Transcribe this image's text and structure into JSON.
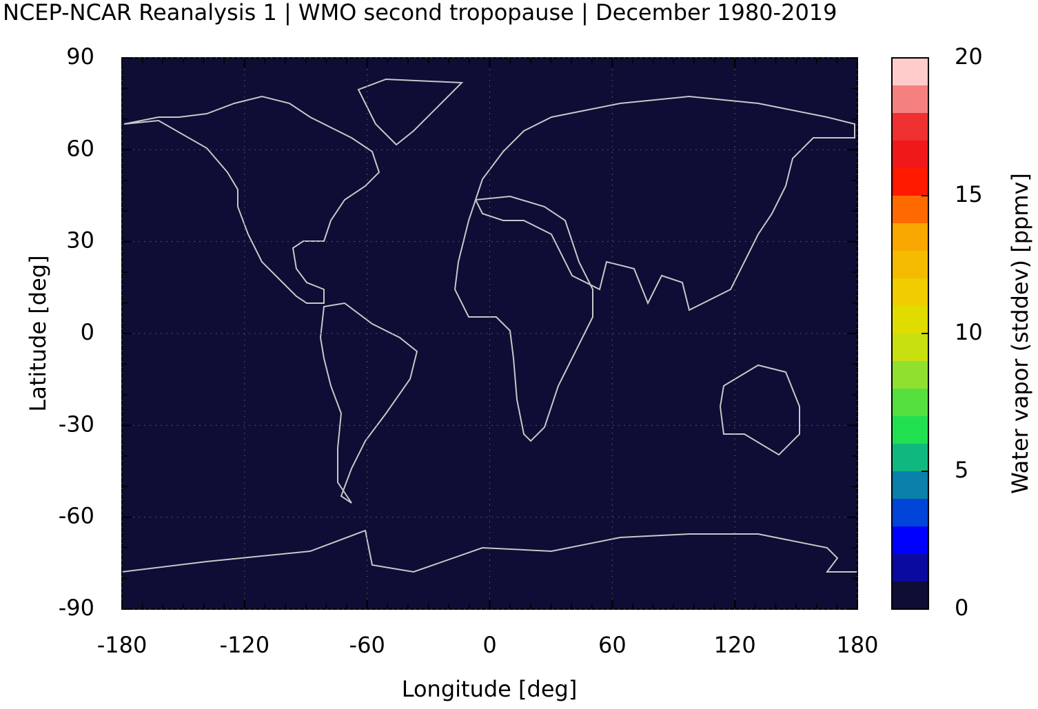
{
  "chart_data": {
    "type": "map",
    "title": "NCEP-NCAR Reanalysis 1 | WMO second tropopause | December 1980-2019",
    "xlabel": "Longitude [deg]",
    "ylabel": "Latitude [deg]",
    "xlim": [
      -180,
      180
    ],
    "xticks": [
      -180,
      -120,
      -60,
      0,
      60,
      120,
      180
    ],
    "ylim": [
      -90,
      90
    ],
    "yticks": [
      -90,
      -60,
      -30,
      0,
      30,
      60,
      90
    ],
    "grid": true,
    "field_color": "#0d0d35",
    "coastline_color": "#c8c8c8",
    "colorbar": {
      "label": "Water vapor (stddev) [ppmv]",
      "lim": [
        0,
        20
      ],
      "ticks": [
        0,
        5,
        10,
        15,
        20
      ],
      "levels": [
        0,
        1,
        2,
        3,
        4,
        5,
        6,
        7,
        8,
        9,
        10,
        11,
        12,
        13,
        14,
        15,
        16,
        17,
        18,
        19,
        20
      ],
      "colors": [
        "#0d0d35",
        "#0a0aa0",
        "#0000ff",
        "#0044d8",
        "#0a80aa",
        "#10b880",
        "#20e050",
        "#55e040",
        "#90e030",
        "#c8e010",
        "#e0dc00",
        "#f0cc00",
        "#f4bb00",
        "#f8a800",
        "#ff6a00",
        "#ff1a00",
        "#f01818",
        "#ee3030",
        "#f58080",
        "#ffcccc"
      ]
    }
  }
}
